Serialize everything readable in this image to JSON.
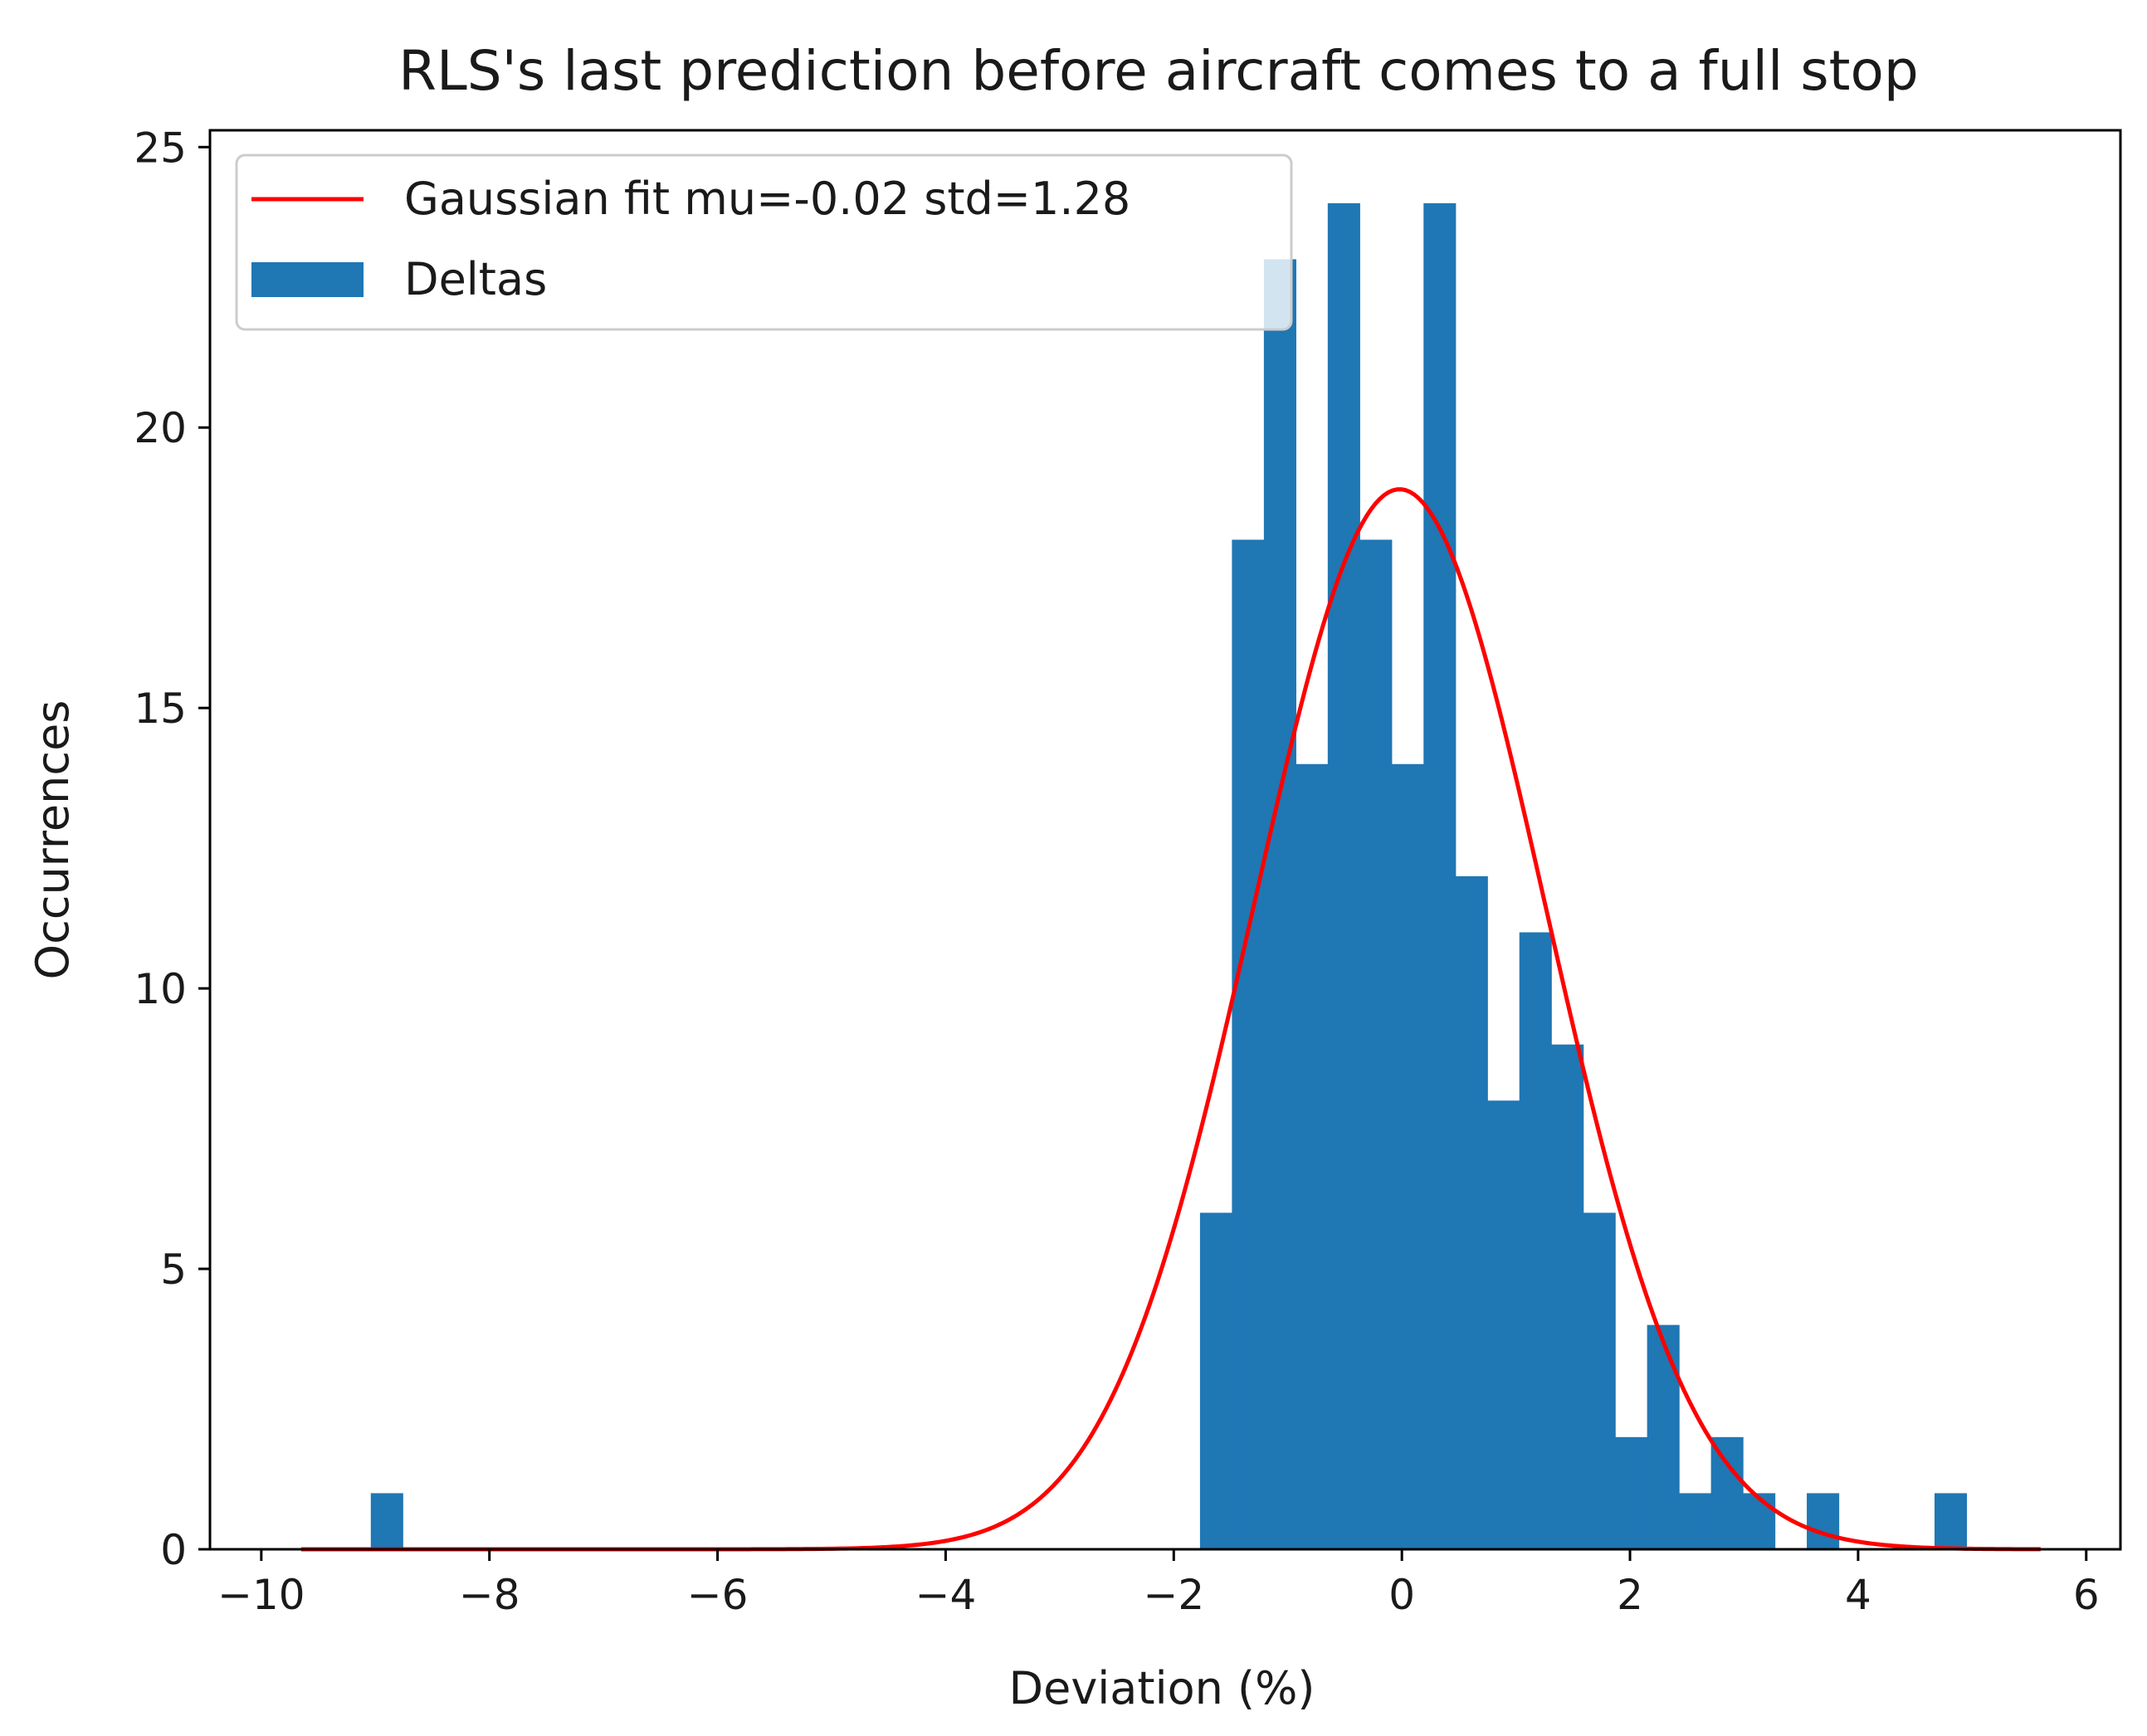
{
  "chart_data": {
    "type": "bar",
    "title": "RLS's last prediction before aircraft comes to a full stop",
    "xlabel": "Deviation (%)",
    "ylabel": "Occurrences",
    "xlim": [
      -10.45,
      6.3
    ],
    "ylim": [
      0,
      25.3
    ],
    "xticks": [
      -10,
      -8,
      -6,
      -4,
      -2,
      0,
      2,
      4,
      6
    ],
    "xtick_labels": [
      "−10",
      "−8",
      "−6",
      "−4",
      "−2",
      "0",
      "2",
      "4",
      "6"
    ],
    "yticks": [
      0,
      5,
      10,
      15,
      20,
      25
    ],
    "ytick_labels": [
      "0",
      "5",
      "10",
      "15",
      "20",
      "25"
    ],
    "series": [
      {
        "name": "Deltas",
        "kind": "histogram",
        "color": "#1f77b4",
        "bins": [
          {
            "x0": -9.04,
            "x1": -8.76,
            "count": 1
          },
          {
            "x0": -1.77,
            "x1": -1.49,
            "count": 6
          },
          {
            "x0": -1.49,
            "x1": -1.21,
            "count": 18
          },
          {
            "x0": -1.21,
            "x1": -0.93,
            "count": 23
          },
          {
            "x0": -0.93,
            "x1": -0.65,
            "count": 14
          },
          {
            "x0": -0.65,
            "x1": -0.37,
            "count": 24
          },
          {
            "x0": -0.37,
            "x1": -0.09,
            "count": 18
          },
          {
            "x0": -0.09,
            "x1": 0.19,
            "count": 14
          },
          {
            "x0": 0.19,
            "x1": 0.47,
            "count": 24
          },
          {
            "x0": 0.47,
            "x1": 0.75,
            "count": 12
          },
          {
            "x0": 0.75,
            "x1": 1.03,
            "count": 8
          },
          {
            "x0": 1.03,
            "x1": 1.31,
            "count": 11
          },
          {
            "x0": 1.31,
            "x1": 1.59,
            "count": 9
          },
          {
            "x0": 1.59,
            "x1": 1.87,
            "count": 6
          },
          {
            "x0": 1.87,
            "x1": 2.15,
            "count": 2
          },
          {
            "x0": 2.15,
            "x1": 2.43,
            "count": 4
          },
          {
            "x0": 2.43,
            "x1": 2.71,
            "count": 1
          },
          {
            "x0": 2.71,
            "x1": 2.99,
            "count": 2
          },
          {
            "x0": 2.99,
            "x1": 3.27,
            "count": 1
          },
          {
            "x0": 3.55,
            "x1": 3.83,
            "count": 1
          },
          {
            "x0": 4.67,
            "x1": 4.95,
            "count": 1
          }
        ]
      },
      {
        "name": "Gaussian fit mu=-0.02 std=1.28",
        "kind": "line",
        "color": "#ff0000",
        "mu": -0.02,
        "std": 1.28,
        "peak": 18.9,
        "x_range": [
          -9.65,
          5.6
        ]
      }
    ],
    "legend": {
      "position": "upper-left",
      "entries": [
        {
          "label": "Gaussian fit mu=-0.02 std=1.28",
          "marker": "line",
          "color": "#ff0000"
        },
        {
          "label": "Deltas",
          "marker": "patch",
          "color": "#1f77b4"
        }
      ]
    }
  }
}
